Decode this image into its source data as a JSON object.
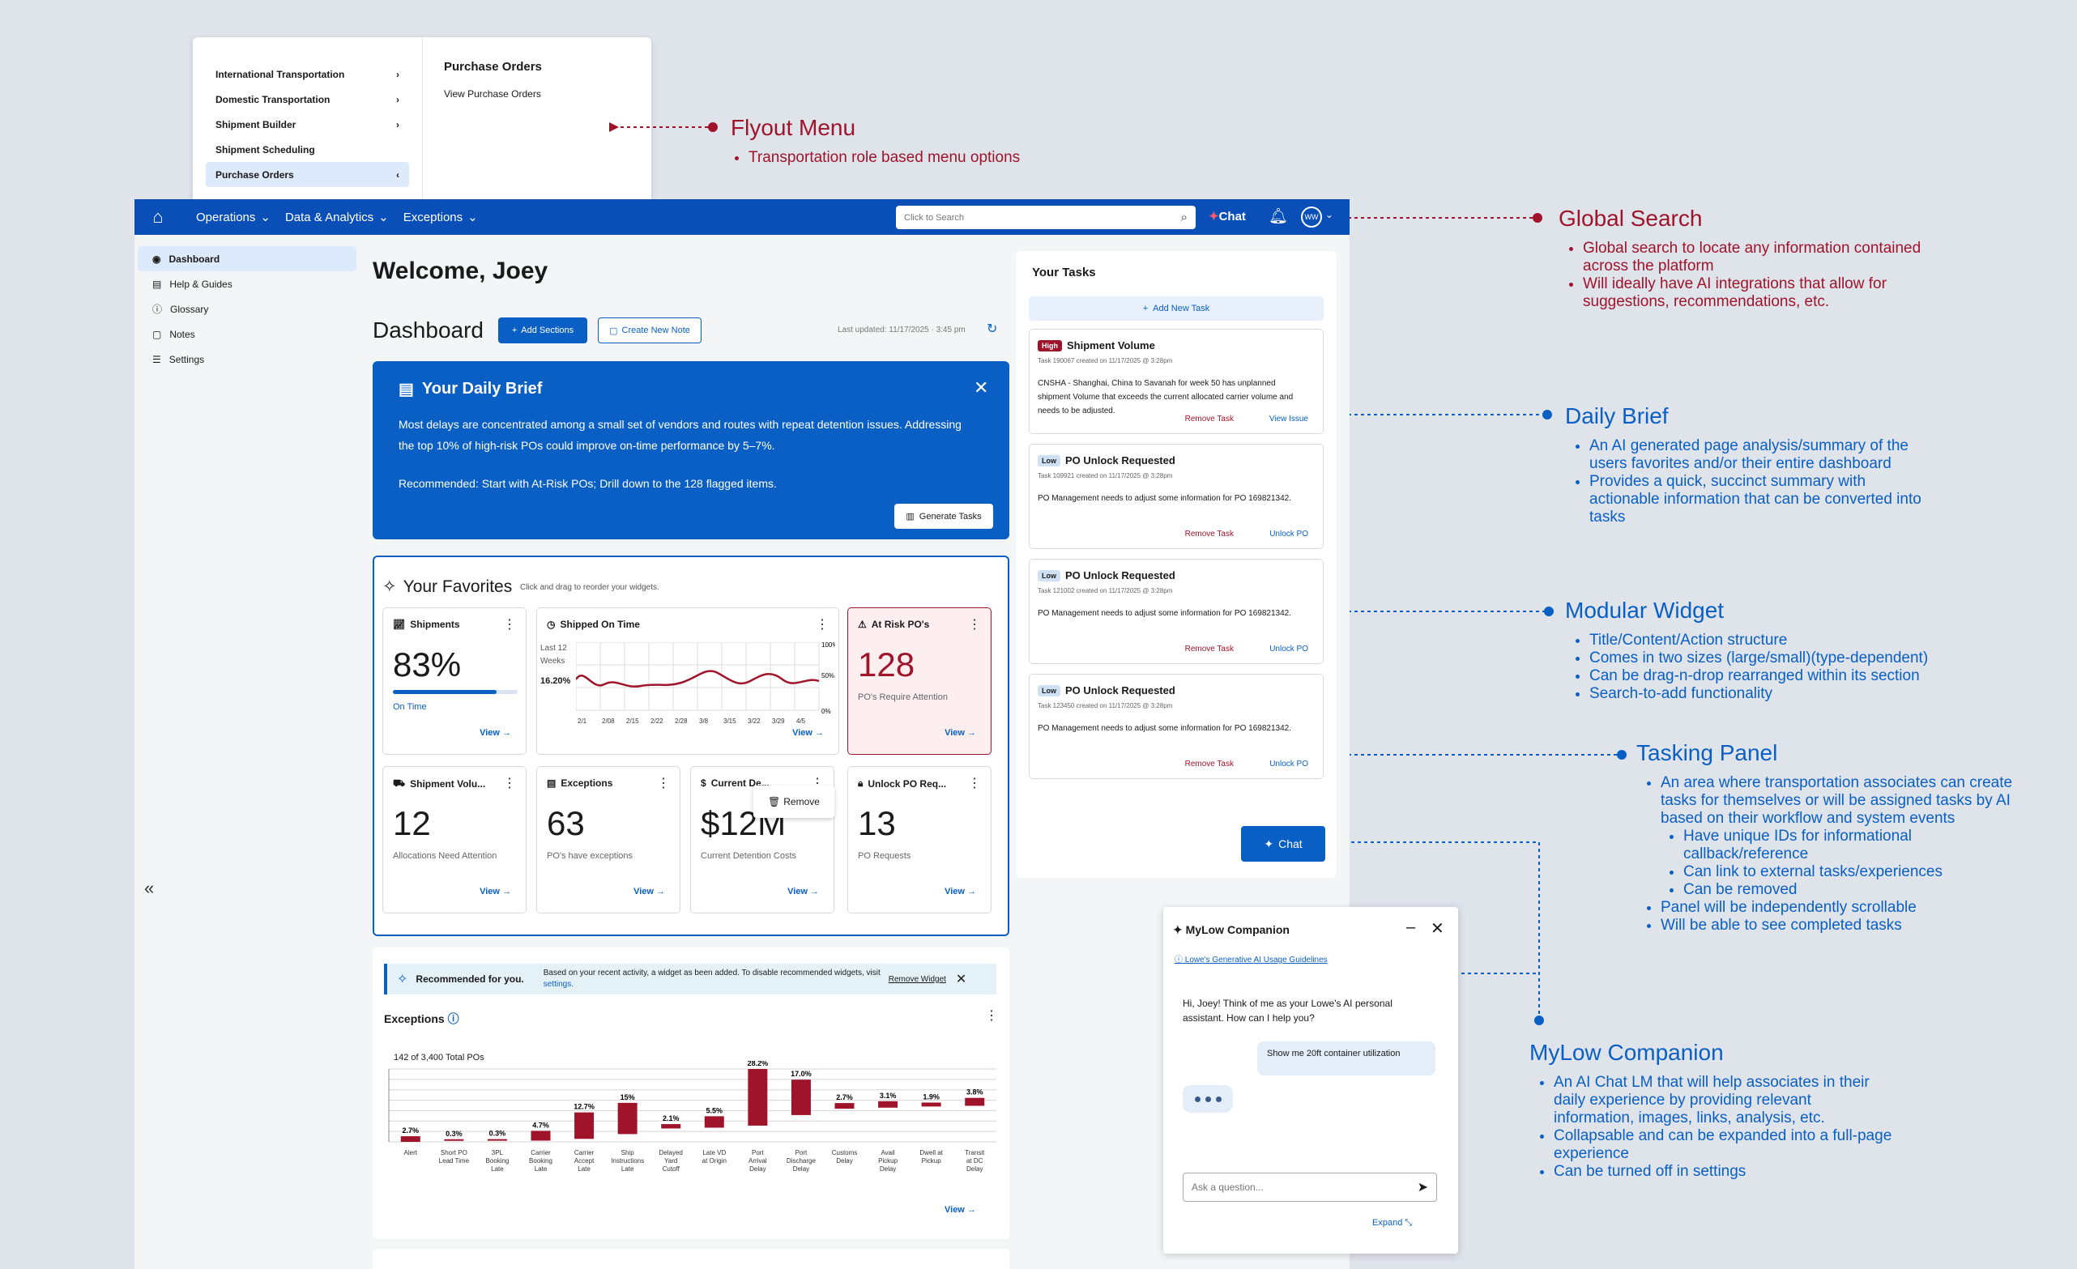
{
  "flyout": {
    "items": [
      {
        "label": "International Transportation",
        "chevron": "›"
      },
      {
        "label": "Domestic Transportation",
        "chevron": "›"
      },
      {
        "label": "Shipment Builder",
        "chevron": "›"
      },
      {
        "label": "Shipment Scheduling",
        "chevron": ""
      },
      {
        "label": "Purchase Orders",
        "chevron": "‹"
      }
    ],
    "panel_title": "Purchase Orders",
    "panel_link": "View Purchase Orders"
  },
  "topbar": {
    "nav": [
      "Operations",
      "Data & Analytics",
      "Exceptions"
    ],
    "search_placeholder": "Click to Search",
    "chat": "Chat",
    "avatar": "WW"
  },
  "sidebar": {
    "items": [
      "Dashboard",
      "Help & Guides",
      "Glossary",
      "Notes",
      "Settings"
    ]
  },
  "main": {
    "welcome": "Welcome, Joey",
    "dashboard": "Dashboard",
    "add_sections": "Add Sections",
    "create_note": "Create New Note",
    "last_updated": "Last updated: 11/17/2025 · 3:45 pm"
  },
  "brief": {
    "title": "Your Daily Brief",
    "body": "Most delays are concentrated among a small set of vendors and routes with repeat detention issues. Addressing the top 10% of high-risk POs could improve on-time performance by 5–7%.",
    "recommended": "Recommended: Start with At-Risk POs; Drill down to the 128 flagged items.",
    "generate": "Generate Tasks"
  },
  "favorites": {
    "title": "Your Favorites",
    "subtitle": "Click and drag to reorder your widgets.",
    "view": "View",
    "remove": "Remove",
    "shipments": {
      "title": "Shipments",
      "value": "83%",
      "caption": "On Time",
      "progress": 0.83
    },
    "shipped_on_time": {
      "title": "Shipped On Time",
      "side_label": "Last 12 Weeks",
      "side_value": "16.20%",
      "y_ticks": [
        "100%",
        "50%",
        "0%"
      ],
      "x_ticks": [
        "2/1",
        "2/08",
        "2/15",
        "2/22",
        "2/28",
        "3/8",
        "3/15",
        "3/22",
        "3/29",
        "4/5"
      ]
    },
    "at_risk": {
      "title": "At Risk PO's",
      "value": "128",
      "caption": "PO's Require Attention"
    },
    "shipment_volume": {
      "title": "Shipment Volu...",
      "value": "12",
      "caption": "Allocations Need Attention"
    },
    "exceptions": {
      "title": "Exceptions",
      "value": "63",
      "caption": "PO's have exceptions"
    },
    "current_detention": {
      "title": "Current De...",
      "value": "$12M",
      "caption": "Current Detention Costs"
    },
    "unlock_po": {
      "title": "Unlock PO Req...",
      "value": "13",
      "caption": "PO Requests"
    }
  },
  "recommended_bar": {
    "label": "Recommended for you.",
    "text": "Based on your recent activity, a widget as been added. To disable recommended widgets, visit",
    "link": "settings.",
    "remove": "Remove Widget"
  },
  "exceptions_chart": {
    "title": "Exceptions",
    "total": "142 of 3,400 Total POs",
    "view": "View"
  },
  "chart_data": {
    "type": "bar",
    "title": "Exceptions",
    "categories": [
      "Alert",
      "Short PO Lead Time",
      "3PL Booking Late",
      "Carrier Booking Late",
      "Carrier Accept Late",
      "Ship Instructions Late",
      "Delayed Yard Cutoff",
      "Late VD at Origin",
      "Port Arrival Delay",
      "Port Discharge Delay",
      "Customs Delay",
      "Avail Pickup Delay",
      "Dwell at Pickup",
      "Transit at DC Delay"
    ],
    "values": [
      2.7,
      0.3,
      0.3,
      4.7,
      12.7,
      15,
      2.1,
      5.5,
      28.2,
      17.0,
      2.7,
      3.1,
      1.9,
      3.8
    ],
    "labels": [
      "2.7%",
      "0.3%",
      "0.3%",
      "4.7%",
      "12.7%",
      "15%",
      "2.1%",
      "5.5%",
      "28.2%",
      "17.0%",
      "2.7%",
      "3.1%",
      "1.9%",
      "3.8%"
    ],
    "ylim": [
      0,
      35
    ]
  },
  "tasks": {
    "title": "Your Tasks",
    "add": "Add New Task",
    "cards": [
      {
        "priority": "High",
        "title": "Shipment Volume",
        "meta": "Task 190067 created on 11/17/2025 @ 3:28pm",
        "body": "CNSHA - Shanghai, China  to Savanah for  week 50 has unplanned shipment Volume that exceeds the current allocated carrier volume and needs to be adjusted.",
        "remove": "Remove Task",
        "link": "View Issue"
      },
      {
        "priority": "Low",
        "title": "PO Unlock Requested",
        "meta": "Task 109921 created on 11/17/2025 @ 3:28pm",
        "body": "PO Management needs to adjust some information for PO 169821342.",
        "remove": "Remove Task",
        "link": "Unlock PO"
      },
      {
        "priority": "Low",
        "title": "PO Unlock Requested",
        "meta": "Task 121002 created on 11/17/2025 @ 3:28pm",
        "body": "PO Management needs to adjust some information for PO 169821342.",
        "remove": "Remove Task",
        "link": "Unlock PO"
      },
      {
        "priority": "Low",
        "title": "PO Unlock Requested",
        "meta": "Task 123450 created on 11/17/2025 @ 3:28pm",
        "body": "PO Management needs to adjust some information for PO 169821342.",
        "remove": "Remove Task",
        "link": "Unlock PO"
      }
    ],
    "chat": "Chat"
  },
  "companion": {
    "title": "MyLow Companion",
    "link": "Lowe's Generative AI Usage Guidelines",
    "greeting": "Hi, Joey! Think of me as your Lowe's AI personal assistant. How can I help you?",
    "user_msg": "Show me 20ft container utilization",
    "placeholder": "Ask a question...",
    "expand": "Expand"
  },
  "annotations": {
    "flyout": {
      "title": "Flyout Menu",
      "bullets": [
        "Transportation role based menu options"
      ]
    },
    "search": {
      "title": "Global Search",
      "bullets": [
        "Global search to locate any information contained across the platform",
        "Will ideally have AI integrations that allow for suggestions, recommendations, etc."
      ]
    },
    "brief": {
      "title": "Daily Brief",
      "bullets": [
        "An AI generated page analysis/summary of the users favorites and/or their entire dashboard",
        "Provides a quick, succinct summary with actionable information that can be converted into tasks"
      ]
    },
    "widget": {
      "title": "Modular Widget",
      "bullets": [
        "Title/Content/Action structure",
        "Comes in two sizes (large/small)(type-dependent)",
        "Can be drag-n-drop rearranged within its section",
        "Search-to-add functionality"
      ]
    },
    "tasking": {
      "title": "Tasking Panel",
      "bullets": [
        "An area where transportation associates can create tasks for themselves or will be assigned tasks by AI based on their workflow and system events"
      ],
      "sub_bullets": [
        "Have unique IDs for informational callback/reference",
        "Can link to external tasks/experiences",
        "Can be removed"
      ],
      "bullets2": [
        "Panel will be independently scrollable",
        "Will be able to see completed tasks"
      ]
    },
    "companion": {
      "title": "MyLow Companion",
      "bullets": [
        "An AI Chat LM that will help associates in their daily experience by providing relevant information, images, links, analysis, etc.",
        "Collapsable and can be expanded into a full-page experience",
        "Can be turned off in settings"
      ]
    }
  },
  "colors": {
    "primary": "#0a5fc4",
    "nav": "#0a4fb8",
    "accent_red": "#a0142b",
    "background": "#dfe3ea"
  }
}
